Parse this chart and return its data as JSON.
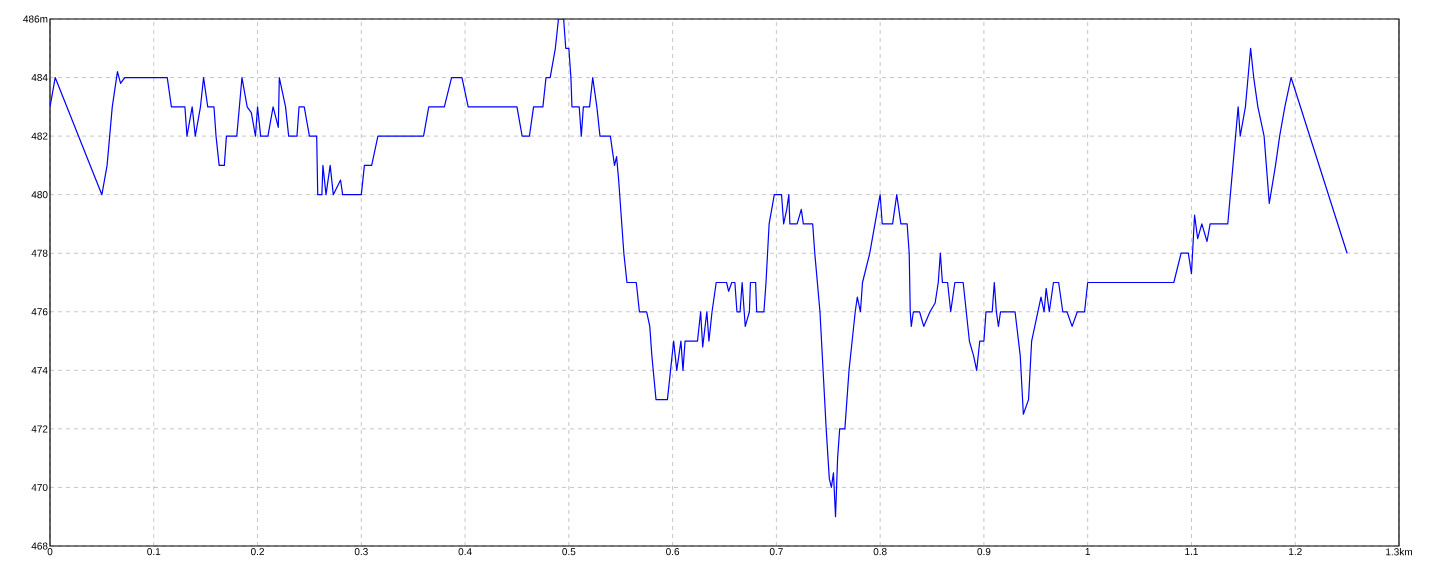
{
  "chart_data": {
    "type": "line",
    "color": "#0000ff",
    "grid": true,
    "marker": "none",
    "line_style": "solid",
    "xlim": [
      0,
      1.3
    ],
    "ylim": [
      468,
      486
    ],
    "xticks": [
      0,
      0.1,
      0.2,
      0.3,
      0.4,
      0.5,
      0.6,
      0.7,
      0.8,
      0.9,
      1,
      1.1,
      1.2,
      {
        "value": 1.3,
        "label": "1.3km"
      }
    ],
    "yticks": [
      468,
      470,
      472,
      474,
      476,
      478,
      480,
      482,
      484,
      {
        "value": 486,
        "label": "486m"
      }
    ],
    "x": [
      0,
      0.005,
      0.05,
      0.055,
      0.06,
      0.065,
      0.068,
      0.072,
      0.113,
      0.117,
      0.13,
      0.132,
      0.137,
      0.14,
      0.145,
      0.148,
      0.152,
      0.158,
      0.16,
      0.163,
      0.168,
      0.17,
      0.18,
      0.185,
      0.19,
      0.194,
      0.198,
      0.2,
      0.203,
      0.21,
      0.215,
      0.22,
      0.221,
      0.227,
      0.23,
      0.238,
      0.24,
      0.245,
      0.25,
      0.257,
      0.258,
      0.262,
      0.263,
      0.266,
      0.27,
      0.273,
      0.28,
      0.282,
      0.3,
      0.303,
      0.31,
      0.316,
      0.36,
      0.365,
      0.38,
      0.387,
      0.397,
      0.403,
      0.45,
      0.455,
      0.462,
      0.466,
      0.475,
      0.478,
      0.482,
      0.487,
      0.49,
      0.495,
      0.497,
      0.5,
      0.502,
      0.503,
      0.51,
      0.512,
      0.514,
      0.52,
      0.523,
      0.527,
      0.53,
      0.54,
      0.544,
      0.546,
      0.548,
      0.553,
      0.556,
      0.565,
      0.568,
      0.575,
      0.578,
      0.58,
      0.584,
      0.595,
      0.598,
      0.601,
      0.604,
      0.608,
      0.61,
      0.612,
      0.624,
      0.627,
      0.629,
      0.633,
      0.635,
      0.638,
      0.642,
      0.652,
      0.654,
      0.657,
      0.66,
      0.662,
      0.665,
      0.667,
      0.669,
      0.67,
      0.674,
      0.675,
      0.68,
      0.681,
      0.688,
      0.69,
      0.693,
      0.698,
      0.705,
      0.707,
      0.71,
      0.712,
      0.713,
      0.72,
      0.724,
      0.726,
      0.735,
      0.737,
      0.742,
      0.745,
      0.748,
      0.751,
      0.753,
      0.755,
      0.757,
      0.759,
      0.761,
      0.766,
      0.77,
      0.773,
      0.776,
      0.778,
      0.781,
      0.783,
      0.79,
      0.795,
      0.8,
      0.802,
      0.812,
      0.816,
      0.82,
      0.826,
      0.828,
      0.829,
      0.83,
      0.832,
      0.838,
      0.842,
      0.848,
      0.853,
      0.856,
      0.858,
      0.86,
      0.865,
      0.868,
      0.872,
      0.88,
      0.883,
      0.886,
      0.89,
      0.893,
      0.896,
      0.9,
      0.902,
      0.908,
      0.91,
      0.912,
      0.914,
      0.916,
      0.93,
      0.935,
      0.938,
      0.943,
      0.946,
      0.955,
      0.958,
      0.96,
      0.963,
      0.967,
      0.972,
      0.976,
      0.98,
      0.985,
      0.99,
      0.997,
      1,
      1.083,
      1.09,
      1.097,
      1.1,
      1.103,
      1.106,
      1.11,
      1.115,
      1.118,
      1.135,
      1.14,
      1.145,
      1.147,
      1.152,
      1.157,
      1.16,
      1.164,
      1.17,
      1.175,
      1.181,
      1.185,
      1.19,
      1.196,
      1.25
    ],
    "values": [
      483,
      484,
      480,
      481,
      483,
      484.2,
      483.8,
      484,
      484,
      483,
      483,
      482,
      483,
      482,
      483,
      484,
      483,
      483,
      482,
      481,
      481,
      482,
      482,
      484,
      483,
      482.8,
      482,
      483,
      482,
      482,
      483,
      482.3,
      484,
      483,
      482,
      482,
      483,
      483,
      482,
      482,
      480,
      480,
      481,
      480,
      481,
      480,
      480.5,
      480,
      480,
      481,
      481,
      482,
      482,
      483,
      483,
      484,
      484,
      483,
      483,
      482,
      482,
      483,
      483,
      484,
      484,
      485,
      486,
      486,
      485,
      485,
      484,
      483,
      483,
      482,
      483,
      483,
      484,
      483,
      482,
      482,
      481,
      481.3,
      480.5,
      478,
      477,
      477,
      476,
      476,
      475.5,
      474.5,
      473,
      473,
      474,
      475,
      474,
      475,
      474,
      475,
      475,
      476,
      474.8,
      476,
      475,
      476,
      477,
      477,
      476.7,
      477,
      477,
      476,
      476,
      477,
      476,
      475.5,
      476,
      477,
      477,
      476,
      476,
      477,
      479,
      480,
      480,
      479,
      479.5,
      480,
      479,
      479,
      479.5,
      479,
      479,
      478,
      476,
      474,
      472,
      470.3,
      470,
      470.5,
      469,
      471,
      472,
      472,
      474,
      475,
      476,
      476.5,
      476,
      477,
      478,
      479,
      480,
      479,
      479,
      480,
      479,
      479,
      478,
      476,
      475.5,
      476,
      476,
      475.5,
      476,
      476.3,
      477,
      478,
      477,
      477,
      476,
      477,
      477,
      476,
      475,
      474.5,
      474,
      475,
      475,
      476,
      476,
      477,
      476,
      475.5,
      476,
      476,
      474.5,
      472.5,
      473,
      475,
      476.5,
      476,
      476.8,
      476,
      477,
      477,
      476,
      476,
      475.5,
      476,
      476,
      477,
      477,
      478,
      478,
      477.3,
      479.3,
      478.5,
      479,
      478.4,
      479,
      479,
      481,
      483,
      482,
      483,
      485,
      484,
      483,
      482,
      479.7,
      481,
      482,
      483,
      484,
      478
    ]
  }
}
